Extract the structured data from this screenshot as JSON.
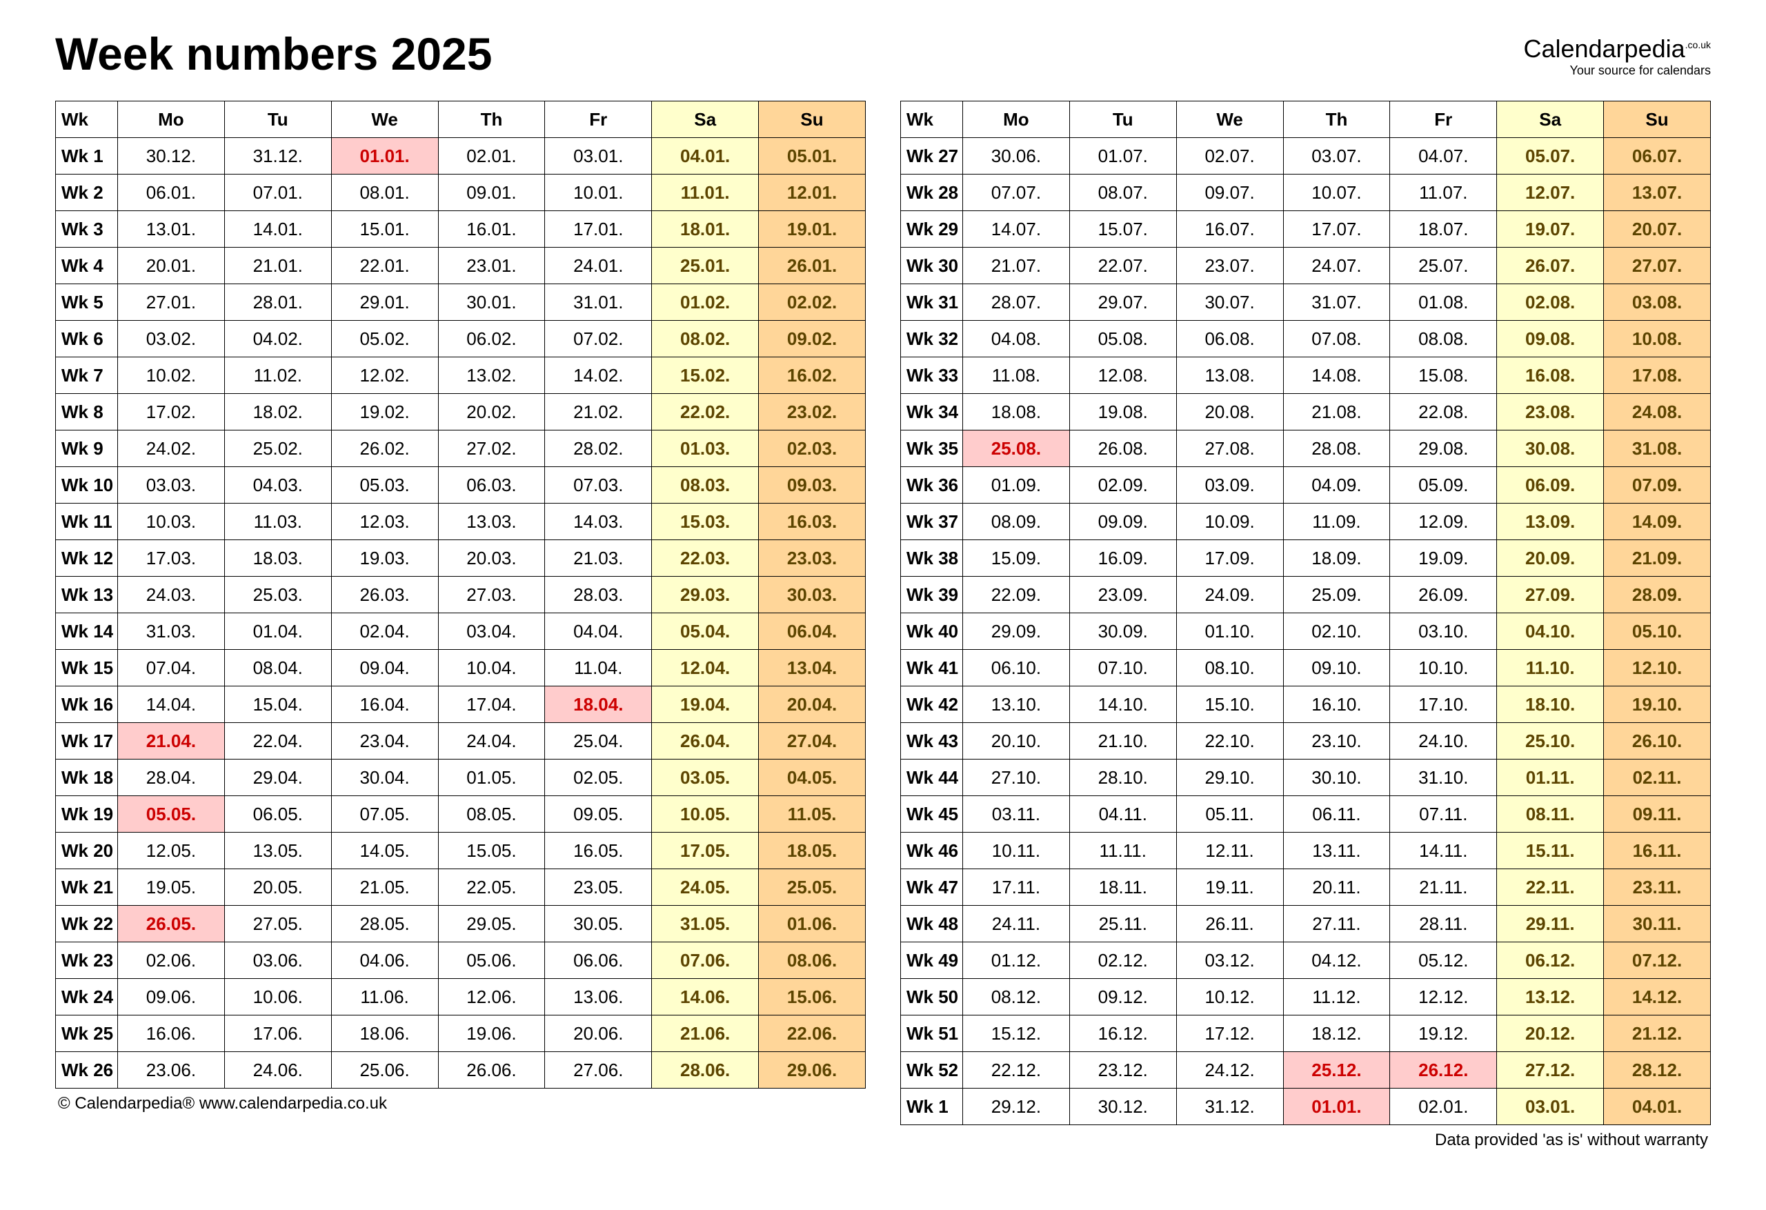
{
  "title": "Week numbers 2025",
  "brand": {
    "name": "Calendarpedia",
    "tld": ".co.uk",
    "tagline": "Your source for calendars"
  },
  "footer": {
    "left": "© Calendarpedia®   www.calendarpedia.co.uk",
    "right": "Data provided 'as is' without warranty"
  },
  "colors": {
    "sat_header": "#ffffcc",
    "sun_header": "#ffd699",
    "sat_cell": "#ffffcc",
    "sun_cell": "#ffd699",
    "holiday": "#ffcccc",
    "holiday_text": "#cc0000",
    "weekend_text": "#5c4400",
    "border": "#000000"
  },
  "headers": [
    "Wk",
    "Mo",
    "Tu",
    "We",
    "Th",
    "Fr",
    "Sa",
    "Su"
  ],
  "left_rows": [
    {
      "wk": "Wk 1",
      "d": [
        "30.12.",
        "31.12.",
        "01.01.",
        "02.01.",
        "03.01.",
        "04.01.",
        "05.01."
      ],
      "hol": [
        2
      ]
    },
    {
      "wk": "Wk 2",
      "d": [
        "06.01.",
        "07.01.",
        "08.01.",
        "09.01.",
        "10.01.",
        "11.01.",
        "12.01."
      ],
      "hol": []
    },
    {
      "wk": "Wk 3",
      "d": [
        "13.01.",
        "14.01.",
        "15.01.",
        "16.01.",
        "17.01.",
        "18.01.",
        "19.01."
      ],
      "hol": []
    },
    {
      "wk": "Wk 4",
      "d": [
        "20.01.",
        "21.01.",
        "22.01.",
        "23.01.",
        "24.01.",
        "25.01.",
        "26.01."
      ],
      "hol": []
    },
    {
      "wk": "Wk 5",
      "d": [
        "27.01.",
        "28.01.",
        "29.01.",
        "30.01.",
        "31.01.",
        "01.02.",
        "02.02."
      ],
      "hol": []
    },
    {
      "wk": "Wk 6",
      "d": [
        "03.02.",
        "04.02.",
        "05.02.",
        "06.02.",
        "07.02.",
        "08.02.",
        "09.02."
      ],
      "hol": []
    },
    {
      "wk": "Wk 7",
      "d": [
        "10.02.",
        "11.02.",
        "12.02.",
        "13.02.",
        "14.02.",
        "15.02.",
        "16.02."
      ],
      "hol": []
    },
    {
      "wk": "Wk 8",
      "d": [
        "17.02.",
        "18.02.",
        "19.02.",
        "20.02.",
        "21.02.",
        "22.02.",
        "23.02."
      ],
      "hol": []
    },
    {
      "wk": "Wk 9",
      "d": [
        "24.02.",
        "25.02.",
        "26.02.",
        "27.02.",
        "28.02.",
        "01.03.",
        "02.03."
      ],
      "hol": []
    },
    {
      "wk": "Wk 10",
      "d": [
        "03.03.",
        "04.03.",
        "05.03.",
        "06.03.",
        "07.03.",
        "08.03.",
        "09.03."
      ],
      "hol": []
    },
    {
      "wk": "Wk 11",
      "d": [
        "10.03.",
        "11.03.",
        "12.03.",
        "13.03.",
        "14.03.",
        "15.03.",
        "16.03."
      ],
      "hol": []
    },
    {
      "wk": "Wk 12",
      "d": [
        "17.03.",
        "18.03.",
        "19.03.",
        "20.03.",
        "21.03.",
        "22.03.",
        "23.03."
      ],
      "hol": []
    },
    {
      "wk": "Wk 13",
      "d": [
        "24.03.",
        "25.03.",
        "26.03.",
        "27.03.",
        "28.03.",
        "29.03.",
        "30.03."
      ],
      "hol": []
    },
    {
      "wk": "Wk 14",
      "d": [
        "31.03.",
        "01.04.",
        "02.04.",
        "03.04.",
        "04.04.",
        "05.04.",
        "06.04."
      ],
      "hol": []
    },
    {
      "wk": "Wk 15",
      "d": [
        "07.04.",
        "08.04.",
        "09.04.",
        "10.04.",
        "11.04.",
        "12.04.",
        "13.04."
      ],
      "hol": []
    },
    {
      "wk": "Wk 16",
      "d": [
        "14.04.",
        "15.04.",
        "16.04.",
        "17.04.",
        "18.04.",
        "19.04.",
        "20.04."
      ],
      "hol": [
        4
      ]
    },
    {
      "wk": "Wk 17",
      "d": [
        "21.04.",
        "22.04.",
        "23.04.",
        "24.04.",
        "25.04.",
        "26.04.",
        "27.04."
      ],
      "hol": [
        0
      ]
    },
    {
      "wk": "Wk 18",
      "d": [
        "28.04.",
        "29.04.",
        "30.04.",
        "01.05.",
        "02.05.",
        "03.05.",
        "04.05."
      ],
      "hol": []
    },
    {
      "wk": "Wk 19",
      "d": [
        "05.05.",
        "06.05.",
        "07.05.",
        "08.05.",
        "09.05.",
        "10.05.",
        "11.05."
      ],
      "hol": [
        0
      ]
    },
    {
      "wk": "Wk 20",
      "d": [
        "12.05.",
        "13.05.",
        "14.05.",
        "15.05.",
        "16.05.",
        "17.05.",
        "18.05."
      ],
      "hol": []
    },
    {
      "wk": "Wk 21",
      "d": [
        "19.05.",
        "20.05.",
        "21.05.",
        "22.05.",
        "23.05.",
        "24.05.",
        "25.05."
      ],
      "hol": []
    },
    {
      "wk": "Wk 22",
      "d": [
        "26.05.",
        "27.05.",
        "28.05.",
        "29.05.",
        "30.05.",
        "31.05.",
        "01.06."
      ],
      "hol": [
        0
      ]
    },
    {
      "wk": "Wk 23",
      "d": [
        "02.06.",
        "03.06.",
        "04.06.",
        "05.06.",
        "06.06.",
        "07.06.",
        "08.06."
      ],
      "hol": []
    },
    {
      "wk": "Wk 24",
      "d": [
        "09.06.",
        "10.06.",
        "11.06.",
        "12.06.",
        "13.06.",
        "14.06.",
        "15.06."
      ],
      "hol": []
    },
    {
      "wk": "Wk 25",
      "d": [
        "16.06.",
        "17.06.",
        "18.06.",
        "19.06.",
        "20.06.",
        "21.06.",
        "22.06."
      ],
      "hol": []
    },
    {
      "wk": "Wk 26",
      "d": [
        "23.06.",
        "24.06.",
        "25.06.",
        "26.06.",
        "27.06.",
        "28.06.",
        "29.06."
      ],
      "hol": []
    }
  ],
  "right_rows": [
    {
      "wk": "Wk 27",
      "d": [
        "30.06.",
        "01.07.",
        "02.07.",
        "03.07.",
        "04.07.",
        "05.07.",
        "06.07."
      ],
      "hol": []
    },
    {
      "wk": "Wk 28",
      "d": [
        "07.07.",
        "08.07.",
        "09.07.",
        "10.07.",
        "11.07.",
        "12.07.",
        "13.07."
      ],
      "hol": []
    },
    {
      "wk": "Wk 29",
      "d": [
        "14.07.",
        "15.07.",
        "16.07.",
        "17.07.",
        "18.07.",
        "19.07.",
        "20.07."
      ],
      "hol": []
    },
    {
      "wk": "Wk 30",
      "d": [
        "21.07.",
        "22.07.",
        "23.07.",
        "24.07.",
        "25.07.",
        "26.07.",
        "27.07."
      ],
      "hol": []
    },
    {
      "wk": "Wk 31",
      "d": [
        "28.07.",
        "29.07.",
        "30.07.",
        "31.07.",
        "01.08.",
        "02.08.",
        "03.08."
      ],
      "hol": []
    },
    {
      "wk": "Wk 32",
      "d": [
        "04.08.",
        "05.08.",
        "06.08.",
        "07.08.",
        "08.08.",
        "09.08.",
        "10.08."
      ],
      "hol": []
    },
    {
      "wk": "Wk 33",
      "d": [
        "11.08.",
        "12.08.",
        "13.08.",
        "14.08.",
        "15.08.",
        "16.08.",
        "17.08."
      ],
      "hol": []
    },
    {
      "wk": "Wk 34",
      "d": [
        "18.08.",
        "19.08.",
        "20.08.",
        "21.08.",
        "22.08.",
        "23.08.",
        "24.08."
      ],
      "hol": []
    },
    {
      "wk": "Wk 35",
      "d": [
        "25.08.",
        "26.08.",
        "27.08.",
        "28.08.",
        "29.08.",
        "30.08.",
        "31.08."
      ],
      "hol": [
        0
      ]
    },
    {
      "wk": "Wk 36",
      "d": [
        "01.09.",
        "02.09.",
        "03.09.",
        "04.09.",
        "05.09.",
        "06.09.",
        "07.09."
      ],
      "hol": []
    },
    {
      "wk": "Wk 37",
      "d": [
        "08.09.",
        "09.09.",
        "10.09.",
        "11.09.",
        "12.09.",
        "13.09.",
        "14.09."
      ],
      "hol": []
    },
    {
      "wk": "Wk 38",
      "d": [
        "15.09.",
        "16.09.",
        "17.09.",
        "18.09.",
        "19.09.",
        "20.09.",
        "21.09."
      ],
      "hol": []
    },
    {
      "wk": "Wk 39",
      "d": [
        "22.09.",
        "23.09.",
        "24.09.",
        "25.09.",
        "26.09.",
        "27.09.",
        "28.09."
      ],
      "hol": []
    },
    {
      "wk": "Wk 40",
      "d": [
        "29.09.",
        "30.09.",
        "01.10.",
        "02.10.",
        "03.10.",
        "04.10.",
        "05.10."
      ],
      "hol": []
    },
    {
      "wk": "Wk 41",
      "d": [
        "06.10.",
        "07.10.",
        "08.10.",
        "09.10.",
        "10.10.",
        "11.10.",
        "12.10."
      ],
      "hol": []
    },
    {
      "wk": "Wk 42",
      "d": [
        "13.10.",
        "14.10.",
        "15.10.",
        "16.10.",
        "17.10.",
        "18.10.",
        "19.10."
      ],
      "hol": []
    },
    {
      "wk": "Wk 43",
      "d": [
        "20.10.",
        "21.10.",
        "22.10.",
        "23.10.",
        "24.10.",
        "25.10.",
        "26.10."
      ],
      "hol": []
    },
    {
      "wk": "Wk 44",
      "d": [
        "27.10.",
        "28.10.",
        "29.10.",
        "30.10.",
        "31.10.",
        "01.11.",
        "02.11."
      ],
      "hol": []
    },
    {
      "wk": "Wk 45",
      "d": [
        "03.11.",
        "04.11.",
        "05.11.",
        "06.11.",
        "07.11.",
        "08.11.",
        "09.11."
      ],
      "hol": []
    },
    {
      "wk": "Wk 46",
      "d": [
        "10.11.",
        "11.11.",
        "12.11.",
        "13.11.",
        "14.11.",
        "15.11.",
        "16.11."
      ],
      "hol": []
    },
    {
      "wk": "Wk 47",
      "d": [
        "17.11.",
        "18.11.",
        "19.11.",
        "20.11.",
        "21.11.",
        "22.11.",
        "23.11."
      ],
      "hol": []
    },
    {
      "wk": "Wk 48",
      "d": [
        "24.11.",
        "25.11.",
        "26.11.",
        "27.11.",
        "28.11.",
        "29.11.",
        "30.11."
      ],
      "hol": []
    },
    {
      "wk": "Wk 49",
      "d": [
        "01.12.",
        "02.12.",
        "03.12.",
        "04.12.",
        "05.12.",
        "06.12.",
        "07.12."
      ],
      "hol": []
    },
    {
      "wk": "Wk 50",
      "d": [
        "08.12.",
        "09.12.",
        "10.12.",
        "11.12.",
        "12.12.",
        "13.12.",
        "14.12."
      ],
      "hol": []
    },
    {
      "wk": "Wk 51",
      "d": [
        "15.12.",
        "16.12.",
        "17.12.",
        "18.12.",
        "19.12.",
        "20.12.",
        "21.12."
      ],
      "hol": []
    },
    {
      "wk": "Wk 52",
      "d": [
        "22.12.",
        "23.12.",
        "24.12.",
        "25.12.",
        "26.12.",
        "27.12.",
        "28.12."
      ],
      "hol": [
        3,
        4
      ]
    },
    {
      "wk": "Wk 1",
      "d": [
        "29.12.",
        "30.12.",
        "31.12.",
        "01.01.",
        "02.01.",
        "03.01.",
        "04.01."
      ],
      "hol": [
        3
      ]
    }
  ]
}
